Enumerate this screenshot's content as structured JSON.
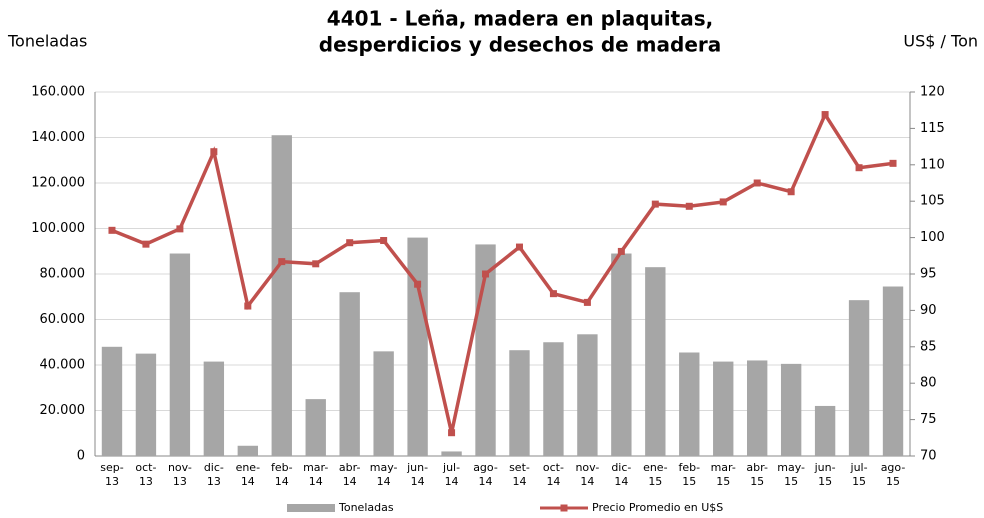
{
  "chart_data": {
    "type": "bar_line",
    "title": [
      "4401 - Leña, madera en plaquitas,",
      "desperdicios y desechos de madera"
    ],
    "y_label": "Toneladas",
    "y2_label": "US$ / Ton",
    "categories": [
      "sep-13",
      "oct-13",
      "nov-13",
      "dic-13",
      "ene-14",
      "feb-14",
      "mar-14",
      "abr-14",
      "may-14",
      "jun-14",
      "jul-14",
      "ago-14",
      "set-14",
      "oct-14",
      "nov-14",
      "dic-14",
      "ene-15",
      "feb-15",
      "mar-15",
      "abr-15",
      "may-15",
      "jun-15",
      "jul-15",
      "ago-15"
    ],
    "series": [
      {
        "name": "Toneladas",
        "type": "bar",
        "color": "#a6a6a6",
        "values": [
          48000,
          45000,
          89000,
          41500,
          4500,
          141000,
          25000,
          72000,
          46000,
          96000,
          2000,
          93000,
          46500,
          50000,
          53500,
          89000,
          83000,
          45500,
          41500,
          42000,
          40500,
          22000,
          68500,
          74500
        ]
      },
      {
        "name": "Precio Promedio en  U$S",
        "type": "line",
        "axis": "y2",
        "color": "#c0504d",
        "values": [
          101,
          99.1,
          101.2,
          111.8,
          90.6,
          96.7,
          96.4,
          99.3,
          99.6,
          93.6,
          73.2,
          95,
          98.7,
          92.3,
          91.1,
          98.1,
          104.6,
          104.3,
          104.9,
          107.5,
          106.3,
          116.9,
          109.6,
          110.2
        ]
      }
    ],
    "ylim": [
      0,
      160000
    ],
    "yticks": [
      0,
      {
        "value": 20000,
        "label": "20.000"
      },
      {
        "value": 40000,
        "label": "40.000"
      },
      {
        "value": 60000,
        "label": "60.000"
      },
      {
        "value": 80000,
        "label": "80.000"
      },
      {
        "value": 100000,
        "label": "100.000"
      },
      {
        "value": 120000,
        "label": "120.000"
      },
      {
        "value": 140000,
        "label": "140.000"
      },
      {
        "value": 160000,
        "label": "160.000"
      }
    ],
    "y2lim": [
      70,
      120
    ],
    "y2ticks": [
      70,
      75,
      80,
      85,
      90,
      95,
      100,
      105,
      110,
      115,
      120
    ],
    "grid": true,
    "legend": "bottom"
  }
}
